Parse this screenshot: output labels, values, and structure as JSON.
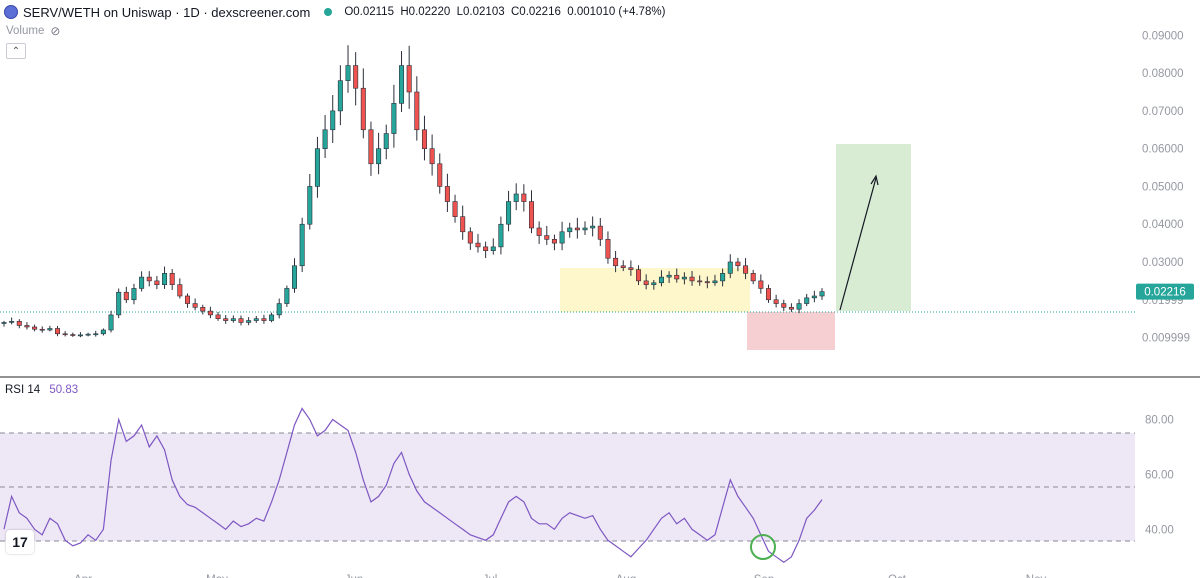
{
  "header": {
    "pair": "SERV/WETH on Uniswap · 1D · dexscreener.com",
    "open": "O0.02115",
    "high": "H0.02220",
    "low": "L0.02103",
    "close": "C0.02216",
    "change": "0.001010 (+4.78%)"
  },
  "volume_label": "Volume",
  "collapse_icon": "chevron-up-icon",
  "rsi": {
    "label": "RSI",
    "period": "14",
    "value": "50.83"
  },
  "price_badge": "0.02216",
  "colors": {
    "up": "#26a69a",
    "down": "#ef5350",
    "rsi_line": "#7e57c2",
    "rsi_band": "#ede7f6",
    "accumulation_zone": "#fff7cc",
    "stop_zone": "#f6cfd2",
    "target_zone": "#d8ecd4",
    "current_price_line": "#26a69a"
  },
  "chart_data": [
    {
      "type": "candlestick",
      "title": "SERV/WETH on Uniswap · 1D · dexscreener.com",
      "y_ticks": [
        "0.09000",
        "0.08000",
        "0.07000",
        "0.06000",
        "0.05000",
        "0.04000",
        "0.03000",
        "0.01999",
        "0.009999"
      ],
      "y_range": [
        0.003,
        0.093
      ],
      "x_ticks": [
        "Apr",
        "May",
        "Jun",
        "Jul",
        "Aug",
        "Sep",
        "Oct",
        "Nov"
      ],
      "close_path": [
        0.014,
        0.0143,
        0.0132,
        0.0128,
        0.0122,
        0.012,
        0.0124,
        0.011,
        0.0108,
        0.0107,
        0.0107,
        0.0109,
        0.011,
        0.012,
        0.016,
        0.022,
        0.02,
        0.023,
        0.026,
        0.025,
        0.024,
        0.027,
        0.024,
        0.021,
        0.019,
        0.018,
        0.017,
        0.016,
        0.015,
        0.0145,
        0.015,
        0.014,
        0.0145,
        0.015,
        0.0145,
        0.016,
        0.019,
        0.023,
        0.029,
        0.04,
        0.05,
        0.06,
        0.065,
        0.07,
        0.078,
        0.082,
        0.076,
        0.065,
        0.056,
        0.06,
        0.064,
        0.072,
        0.082,
        0.075,
        0.065,
        0.06,
        0.056,
        0.05,
        0.046,
        0.042,
        0.038,
        0.035,
        0.034,
        0.033,
        0.034,
        0.04,
        0.046,
        0.048,
        0.046,
        0.039,
        0.037,
        0.036,
        0.035,
        0.038,
        0.039,
        0.0385,
        0.039,
        0.0395,
        0.036,
        0.031,
        0.029,
        0.0285,
        0.028,
        0.025,
        0.024,
        0.0245,
        0.026,
        0.0265,
        0.0255,
        0.026,
        0.025,
        0.0248,
        0.0245,
        0.025,
        0.027,
        0.03,
        0.029,
        0.027,
        0.025,
        0.023,
        0.02,
        0.019,
        0.018,
        0.0175,
        0.019,
        0.0205,
        0.021,
        0.02216
      ],
      "notes": "Daily candles; up candles teal, down candles red; dotted line at current price 0.02216."
    },
    {
      "type": "line",
      "series": [
        {
          "name": "RSI 14",
          "values": [
            40,
            52,
            46,
            44,
            40,
            38,
            44,
            42,
            36,
            34,
            35,
            38,
            36,
            40,
            65,
            80,
            72,
            74,
            78,
            70,
            74,
            69,
            58,
            52,
            49,
            48,
            46,
            44,
            42,
            40,
            43,
            41,
            42,
            44,
            43,
            50,
            58,
            68,
            78,
            84,
            80,
            74,
            76,
            80,
            78,
            76,
            68,
            58,
            50,
            52,
            56,
            64,
            68,
            60,
            54,
            50,
            48,
            46,
            44,
            42,
            40,
            38,
            37,
            36,
            38,
            44,
            50,
            52,
            50,
            44,
            42,
            42,
            40,
            44,
            46,
            45,
            44,
            45,
            40,
            36,
            34,
            32,
            30,
            33,
            36,
            40,
            44,
            46,
            42,
            44,
            40,
            38,
            36,
            38,
            48,
            58,
            52,
            48,
            44,
            38,
            32,
            30,
            28,
            30,
            36,
            44,
            47,
            50.83
          ]
        }
      ],
      "y_ticks": [
        "80.00",
        "60.00",
        "40.00"
      ],
      "y_range": [
        23,
        90
      ],
      "levels": [
        70,
        50,
        30
      ],
      "x_ticks": [
        "Apr",
        "May",
        "Jun",
        "Jul",
        "Aug",
        "Sep",
        "Oct",
        "Nov"
      ]
    }
  ]
}
